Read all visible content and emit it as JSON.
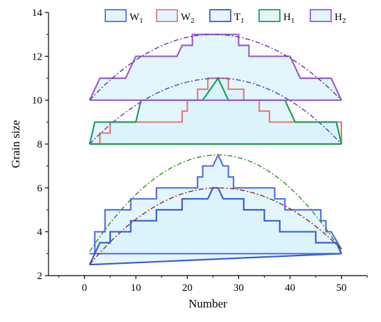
{
  "chart_data": {
    "type": "area",
    "xlabel": "Number",
    "ylabel": "Grain size",
    "xlim": [
      -7,
      55
    ],
    "ylim": [
      2,
      14
    ],
    "xticks": [
      0,
      10,
      20,
      30,
      40,
      50
    ],
    "yticks": [
      2,
      4,
      6,
      8,
      10,
      12,
      14
    ],
    "grid": false,
    "legend_position": "top",
    "series": [
      {
        "name": "W",
        "subscript": "1",
        "color": "#5a6ee0",
        "fill": "#d8f3fb",
        "upper": [
          [
            1,
            3
          ],
          [
            2,
            3
          ],
          [
            2,
            4
          ],
          [
            4,
            4
          ],
          [
            4,
            5
          ],
          [
            9,
            5
          ],
          [
            9,
            5.5
          ],
          [
            14,
            5.5
          ],
          [
            14,
            6
          ],
          [
            22,
            6
          ],
          [
            22,
            6.5
          ],
          [
            23,
            6.5
          ],
          [
            23,
            7
          ],
          [
            25,
            7
          ],
          [
            26,
            7.5
          ],
          [
            27,
            7
          ],
          [
            28,
            7
          ],
          [
            28,
            6.5
          ],
          [
            29,
            6.5
          ],
          [
            29,
            6
          ],
          [
            37,
            6
          ],
          [
            37,
            5.5
          ],
          [
            39,
            5.5
          ],
          [
            39,
            5
          ],
          [
            46,
            5
          ],
          [
            46,
            4.5
          ],
          [
            47,
            4.5
          ],
          [
            47,
            4
          ],
          [
            48,
            4
          ],
          [
            50,
            3.2
          ]
        ],
        "lower": [
          [
            1,
            3
          ],
          [
            50,
            3
          ]
        ],
        "trend": {
          "peak_x": 26,
          "peak_y": 7.5,
          "start_y": 3.1,
          "end_y": 3.1,
          "color": "#2e8b22"
        }
      },
      {
        "name": "W",
        "subscript": "2",
        "color": "#e57c7c",
        "fill": "#d8f3fb",
        "upper": [
          [
            1,
            8
          ],
          [
            3,
            8
          ],
          [
            3,
            8.5
          ],
          [
            5,
            8.5
          ],
          [
            5,
            9
          ],
          [
            12,
            9
          ],
          [
            12,
            9
          ],
          [
            19,
            9
          ],
          [
            19,
            9.5
          ],
          [
            20,
            9.5
          ],
          [
            20,
            10
          ],
          [
            22,
            10
          ],
          [
            22,
            10.5
          ],
          [
            24,
            10.5
          ],
          [
            24,
            11
          ],
          [
            28,
            11
          ],
          [
            28,
            10.5
          ],
          [
            31,
            10.5
          ],
          [
            31,
            10
          ],
          [
            34,
            10
          ],
          [
            34,
            9.5
          ],
          [
            36,
            9.5
          ],
          [
            36,
            9
          ],
          [
            50,
            9
          ],
          [
            50,
            8
          ]
        ],
        "lower": [
          [
            1,
            8
          ],
          [
            50,
            8
          ]
        ],
        "trend": {
          "peak_x": 26,
          "peak_y": 11,
          "start_y": 8,
          "end_y": 8,
          "color": "#e0507a"
        }
      },
      {
        "name": "T",
        "subscript": "1",
        "color": "#3a5bd6",
        "fill": "#d8f3fb",
        "upper": [
          [
            1,
            2.5
          ],
          [
            3,
            3.5
          ],
          [
            5,
            3.5
          ],
          [
            5,
            4
          ],
          [
            9,
            4
          ],
          [
            9,
            4.5
          ],
          [
            14,
            4.5
          ],
          [
            14,
            5
          ],
          [
            19,
            5
          ],
          [
            19,
            5.5
          ],
          [
            24,
            5.5
          ],
          [
            25,
            6
          ],
          [
            26,
            6
          ],
          [
            27,
            5.5
          ],
          [
            31,
            5.5
          ],
          [
            31,
            5
          ],
          [
            35,
            5
          ],
          [
            35,
            4.5
          ],
          [
            38,
            4.5
          ],
          [
            38,
            4
          ],
          [
            45,
            4
          ],
          [
            45,
            3.5
          ],
          [
            49,
            3.5
          ],
          [
            50,
            3
          ]
        ],
        "lower": [
          [
            1,
            2.5
          ],
          [
            50,
            3
          ]
        ],
        "trend": {
          "peak_x": 26,
          "peak_y": 6,
          "start_y": 2.5,
          "end_y": 3.2,
          "color": "#8b2a10"
        }
      },
      {
        "name": "H",
        "subscript": "1",
        "color": "#1f9d55",
        "fill": "#d8f3fb",
        "upper": [
          [
            1,
            8
          ],
          [
            2,
            9
          ],
          [
            10,
            9
          ],
          [
            11,
            10
          ],
          [
            23,
            10
          ],
          [
            26,
            11
          ],
          [
            28,
            10
          ],
          [
            39,
            10
          ],
          [
            41,
            9
          ],
          [
            49,
            9
          ],
          [
            50,
            8
          ]
        ],
        "lower": [
          [
            1,
            8
          ],
          [
            50,
            8
          ]
        ],
        "trend": {
          "peak_x": 26,
          "peak_y": 11,
          "start_y": 8,
          "end_y": 8,
          "color": "#4a55c8"
        }
      },
      {
        "name": "H",
        "subscript": "2",
        "color": "#9a5ccc",
        "fill": "#d8f3fb",
        "upper": [
          [
            1,
            10
          ],
          [
            3,
            11
          ],
          [
            8,
            11
          ],
          [
            10,
            12
          ],
          [
            18,
            12
          ],
          [
            19,
            12.5
          ],
          [
            21,
            12.5
          ],
          [
            21,
            13
          ],
          [
            30,
            13
          ],
          [
            30,
            12.5
          ],
          [
            32,
            12.5
          ],
          [
            32,
            12
          ],
          [
            40,
            12
          ],
          [
            42,
            11
          ],
          [
            48,
            11
          ],
          [
            50,
            10
          ]
        ],
        "lower": [
          [
            1,
            10
          ],
          [
            50,
            10
          ]
        ],
        "trend": {
          "peak_x": 25,
          "peak_y": 13,
          "start_y": 10,
          "end_y": 10,
          "color": "#6a2aa8"
        }
      }
    ]
  }
}
